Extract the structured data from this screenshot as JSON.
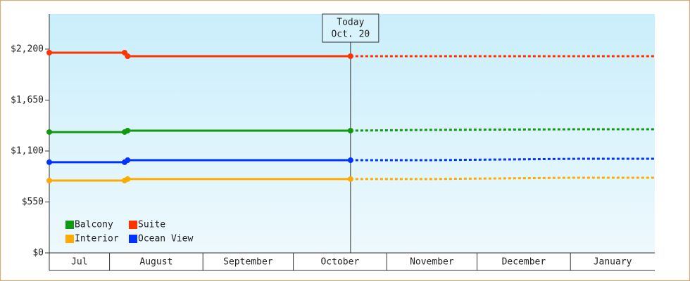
{
  "chart_data": {
    "type": "line",
    "x": [
      0,
      25,
      26,
      100,
      125,
      175,
      201
    ],
    "xlim": [
      0,
      201
    ],
    "xticks": [
      {
        "value": 0,
        "label": "Jul"
      },
      {
        "value": 20,
        "label": "August"
      },
      {
        "value": 51,
        "label": "September"
      },
      {
        "value": 81,
        "label": "October"
      },
      {
        "value": 112,
        "label": "November"
      },
      {
        "value": 142,
        "label": "December"
      },
      {
        "value": 173,
        "label": "January"
      }
    ],
    "ylim": [
      0,
      2579
    ],
    "yticks": [
      {
        "value": 0,
        "label": "$0"
      },
      {
        "value": 550,
        "label": "$550"
      },
      {
        "value": 1100,
        "label": "$1,100"
      },
      {
        "value": 1650,
        "label": "$1,650"
      },
      {
        "value": 2200,
        "label": "$2,200"
      }
    ],
    "grid": false,
    "legend": "lower left",
    "annotation": {
      "text": [
        "Today",
        "Oct. 20"
      ],
      "x": 100
    },
    "series": [
      {
        "name": "Balcony",
        "color": "#119911",
        "values": [
          1305,
          1305,
          1320,
          1320,
          1328,
          1335,
          1335
        ]
      },
      {
        "name": "Suite",
        "color": "#ff3300",
        "values": [
          2162,
          2162,
          2124,
          2124,
          2124,
          2124,
          2124
        ]
      },
      {
        "name": "Interior",
        "color": "#ffaa00",
        "values": [
          781,
          781,
          797,
          797,
          797,
          812,
          812
        ]
      },
      {
        "name": "Ocean View",
        "color": "#0033ff",
        "values": [
          979,
          979,
          1001,
          1001,
          1001,
          1016,
          1016
        ]
      }
    ]
  }
}
